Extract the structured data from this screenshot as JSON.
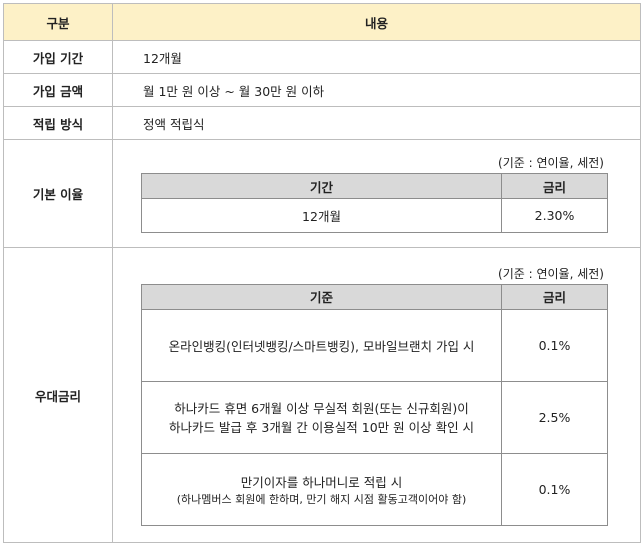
{
  "header": {
    "col1": "구분",
    "col2": "내용"
  },
  "rows": {
    "term": {
      "label": "가입 기간",
      "value": "12개월"
    },
    "amount": {
      "label": "가입 금액",
      "value": "월 1만 원 이상 ~ 월 30만 원 이하"
    },
    "method": {
      "label": "적립 방식",
      "value": "정액 적립식"
    }
  },
  "base_rate": {
    "label": "기본 이율",
    "note": "(기준 : 연이율, 세전)",
    "head_period": "기간",
    "head_rate": "금리",
    "period": "12개월",
    "rate": "2.30%"
  },
  "preferential": {
    "label": "우대금리",
    "note": "(기준 : 연이율, 세전)",
    "head_criteria": "기준",
    "head_rate": "금리",
    "items": [
      {
        "line1": "온라인뱅킹(인터넷뱅킹/스마트뱅킹), 모바일브랜치 가입 시",
        "line2": "",
        "rate": "0.1%"
      },
      {
        "line1": "하나카드 휴면 6개월 이상 무실적 회원(또는 신규회원)이",
        "line2": "하나카드 발급 후 3개월 간 이용실적 10만 원 이상 확인 시",
        "rate": "2.5%"
      },
      {
        "line1": "만기이자를 하나머니로 적립 시",
        "line2": "(하나멤버스 회원에 한하며, 만기 해지 시점 활동고객이어야 함)",
        "rate": "0.1%"
      }
    ]
  }
}
